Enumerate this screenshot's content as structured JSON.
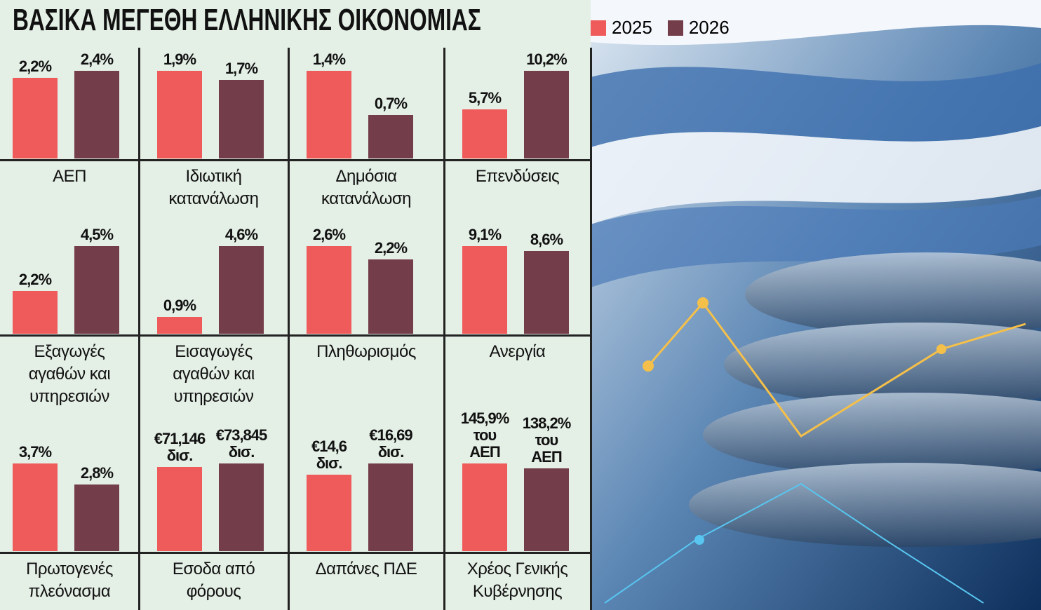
{
  "title": "ΒΑΣΙΚΑ ΜΕΓΕΘΗ ΕΛΛΗΝΙΚΗΣ ΟΙΚΟΝΟΜΙΑΣ",
  "legend": [
    {
      "name": "2025",
      "color": "#ef5b5b"
    },
    {
      "name": "2026",
      "color": "#733d4a"
    }
  ],
  "chart_data": [
    {
      "type": "bar",
      "title": "ΑΕΠ",
      "values": [
        2.2,
        2.4
      ],
      "value_labels": [
        "2,2%",
        "2,4%"
      ]
    },
    {
      "type": "bar",
      "title": "Ιδιωτική κατανάλωση",
      "values": [
        1.9,
        1.7
      ],
      "value_labels": [
        "1,9%",
        "1,7%"
      ]
    },
    {
      "type": "bar",
      "title": "Δημόσια κατανάλωση",
      "values": [
        1.4,
        0.7
      ],
      "value_labels": [
        "1,4%",
        "0,7%"
      ]
    },
    {
      "type": "bar",
      "title": "Επενδύσεις",
      "values": [
        5.7,
        10.2
      ],
      "value_labels": [
        "5,7%",
        "10,2%"
      ]
    },
    {
      "type": "bar",
      "title": "Εξαγωγές αγαθών και υπηρεσιών",
      "values": [
        2.2,
        4.5
      ],
      "value_labels": [
        "2,2%",
        "4,5%"
      ]
    },
    {
      "type": "bar",
      "title": "Εισαγωγές αγαθών και υπηρεσιών",
      "values": [
        0.9,
        4.6
      ],
      "value_labels": [
        "0,9%",
        "4,6%"
      ]
    },
    {
      "type": "bar",
      "title": "Πληθωρισμός",
      "values": [
        2.6,
        2.2
      ],
      "value_labels": [
        "2,6%",
        "2,2%"
      ]
    },
    {
      "type": "bar",
      "title": "Ανεργία",
      "values": [
        9.1,
        8.6
      ],
      "value_labels": [
        "9,1%",
        "8,6%"
      ]
    },
    {
      "type": "bar",
      "title": "Πρωτογενές πλεόνασμα",
      "values": [
        3.7,
        2.8
      ],
      "value_labels": [
        "3,7%",
        "2,8%"
      ]
    },
    {
      "type": "bar",
      "title": "Εσοδα από φόρους",
      "values": [
        71.146,
        73.845
      ],
      "value_labels": [
        "€71,146 δισ.",
        "€73,845 δισ."
      ]
    },
    {
      "type": "bar",
      "title": "Δαπάνες ΠΔΕ",
      "values": [
        14.6,
        16.69
      ],
      "value_labels": [
        "€14,6 δισ.",
        "€16,69 δισ."
      ]
    },
    {
      "type": "bar",
      "title": "Χρέος Γενικής Κυβέρνησης",
      "values": [
        145.9,
        138.2
      ],
      "value_labels": [
        "145,9% του ΑΕΠ",
        "138,2% του ΑΕΠ"
      ]
    }
  ]
}
